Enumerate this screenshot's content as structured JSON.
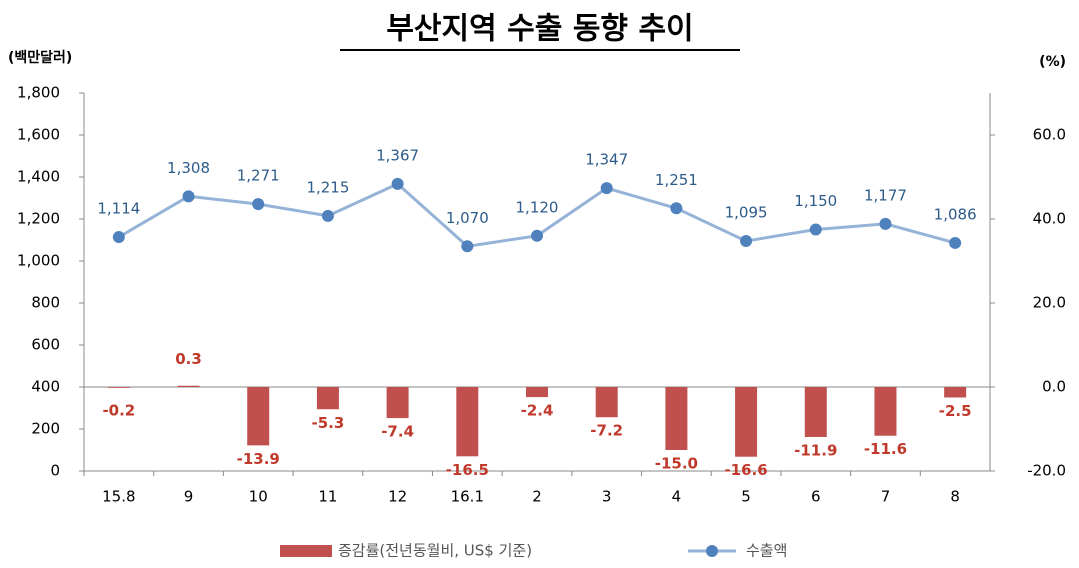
{
  "chart_data": {
    "type": "combo",
    "title": "부산지역 수출 동향 추이",
    "y_label": "(백만달러)",
    "y2_label": "(%)",
    "categories": [
      "15.8",
      "9",
      "10",
      "11",
      "12",
      "16.1",
      "2",
      "3",
      "4",
      "5",
      "6",
      "7",
      "8"
    ],
    "series": [
      {
        "name": "증감률(전년동월비, US$ 기준)",
        "type": "bar",
        "axis": "y2",
        "color": "#c0504d",
        "values": [
          -0.2,
          0.3,
          -13.9,
          -5.3,
          -7.4,
          -16.5,
          -2.4,
          -7.2,
          -15.0,
          -16.6,
          -11.9,
          -11.6,
          -2.5
        ],
        "value_labels": [
          "-0.2",
          "0.3",
          "-13.9",
          "-5.3",
          "-7.4",
          "-16.5",
          "-2.4",
          "-7.2",
          "-15.0",
          "-16.6",
          "-11.9",
          "-11.6",
          "-2.5"
        ]
      },
      {
        "name": "수출액",
        "type": "line",
        "color": "#4f81bd",
        "values": [
          1114,
          1308,
          1271,
          1215,
          1367,
          1070,
          1120,
          1347,
          1251,
          1095,
          1150,
          1177,
          1086
        ],
        "value_labels": [
          "1,114",
          "1,308",
          "1,271",
          "1,215",
          "1,367",
          "1,070",
          "1,120",
          "1,347",
          "1,251",
          "1,095",
          "1,150",
          "1,177",
          "1,086"
        ]
      }
    ],
    "ylim": [
      0,
      1800
    ],
    "yticks": [
      0,
      200,
      400,
      600,
      800,
      {
        "value": 1000,
        "label": "1,000"
      },
      {
        "value": 1200,
        "label": "1,200"
      },
      {
        "value": 1400,
        "label": "1,400"
      },
      {
        "value": 1600,
        "label": "1,600"
      },
      {
        "value": 1800,
        "label": "1,800"
      }
    ],
    "y2lim": [
      -20,
      70
    ],
    "y2ticks": [
      {
        "value": -20,
        "label": "-20.0"
      },
      {
        "value": 0,
        "label": "0.0"
      },
      {
        "value": 20,
        "label": "20.0"
      },
      {
        "value": 40,
        "label": "40.0"
      },
      {
        "value": 60,
        "label": "60.0"
      }
    ],
    "grid": false,
    "legend": "bottom"
  }
}
